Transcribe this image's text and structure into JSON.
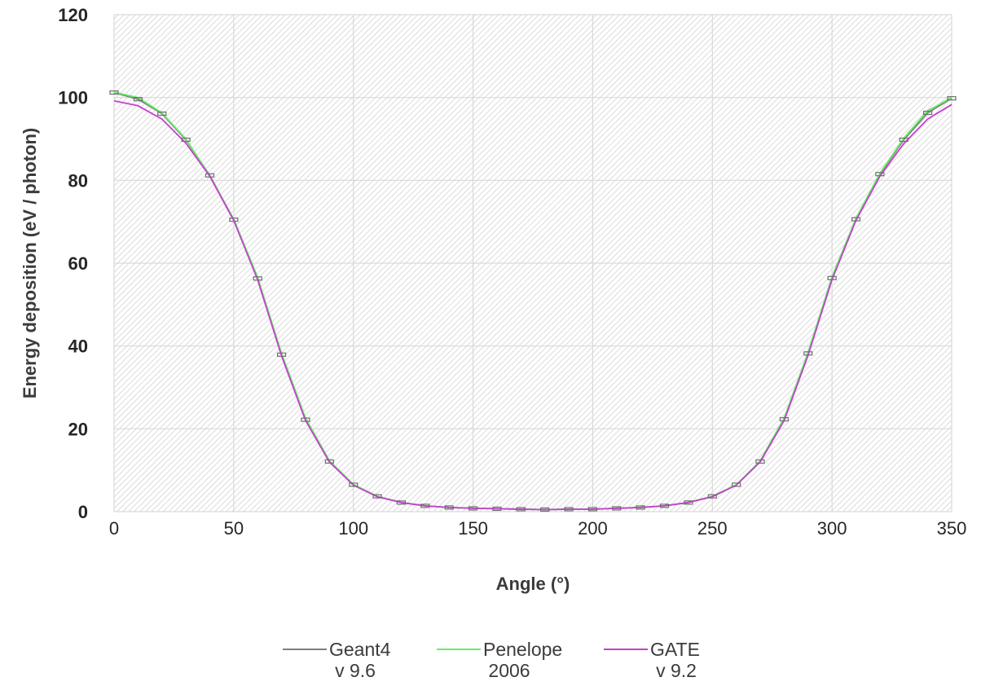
{
  "chart_data": {
    "type": "line",
    "title": "",
    "xlabel": "Angle (°)",
    "ylabel": "Energy deposition (eV / photon)",
    "xlim": [
      0,
      350
    ],
    "ylim": [
      0,
      120
    ],
    "xticks": [
      0,
      50,
      100,
      150,
      200,
      250,
      300,
      350
    ],
    "yticks": [
      0,
      20,
      40,
      60,
      80,
      100,
      120
    ],
    "grid": true,
    "plot_background": "diagonal hatched",
    "legend_position": "bottom",
    "x": [
      0,
      10,
      20,
      30,
      40,
      50,
      60,
      70,
      80,
      90,
      100,
      110,
      120,
      130,
      140,
      150,
      160,
      170,
      180,
      190,
      200,
      210,
      220,
      230,
      240,
      250,
      260,
      270,
      280,
      290,
      300,
      310,
      320,
      330,
      340,
      350
    ],
    "series": [
      {
        "name": "Geant4",
        "name_line2": "v 9.6",
        "color": "#7f7f7f",
        "error_bars": true,
        "values": [
          101.2,
          99.6,
          96.1,
          89.8,
          81.2,
          70.5,
          56.3,
          37.9,
          22.2,
          12.1,
          6.5,
          3.7,
          2.2,
          1.4,
          1.0,
          0.8,
          0.7,
          0.6,
          0.5,
          0.6,
          0.6,
          0.8,
          1.0,
          1.4,
          2.2,
          3.7,
          6.5,
          12.1,
          22.3,
          38.2,
          56.4,
          70.6,
          81.5,
          89.8,
          96.3,
          99.8
        ]
      },
      {
        "name": "Penelope",
        "name_line2": "2006",
        "color": "#66ee66",
        "values": [
          101.3,
          100.0,
          96.3,
          90.0,
          81.1,
          70.6,
          56.6,
          38.2,
          22.6,
          12.3,
          6.6,
          3.7,
          2.2,
          1.4,
          1.0,
          0.8,
          0.7,
          0.6,
          0.5,
          0.6,
          0.6,
          0.8,
          1.0,
          1.4,
          2.2,
          3.7,
          6.5,
          12.3,
          22.6,
          38.5,
          56.7,
          70.8,
          81.7,
          90.2,
          96.8,
          100.0
        ]
      },
      {
        "name": "GATE",
        "name_line2": "v 9.2",
        "color": "#c43fcf",
        "values": [
          99.2,
          98.0,
          94.8,
          89.0,
          81.0,
          70.3,
          56.0,
          37.6,
          22.0,
          12.0,
          6.4,
          3.6,
          2.2,
          1.4,
          1.0,
          0.8,
          0.7,
          0.6,
          0.5,
          0.6,
          0.6,
          0.8,
          1.0,
          1.4,
          2.2,
          3.6,
          6.4,
          12.0,
          22.0,
          37.8,
          56.0,
          70.3,
          81.0,
          88.9,
          94.8,
          98.3
        ]
      }
    ]
  }
}
